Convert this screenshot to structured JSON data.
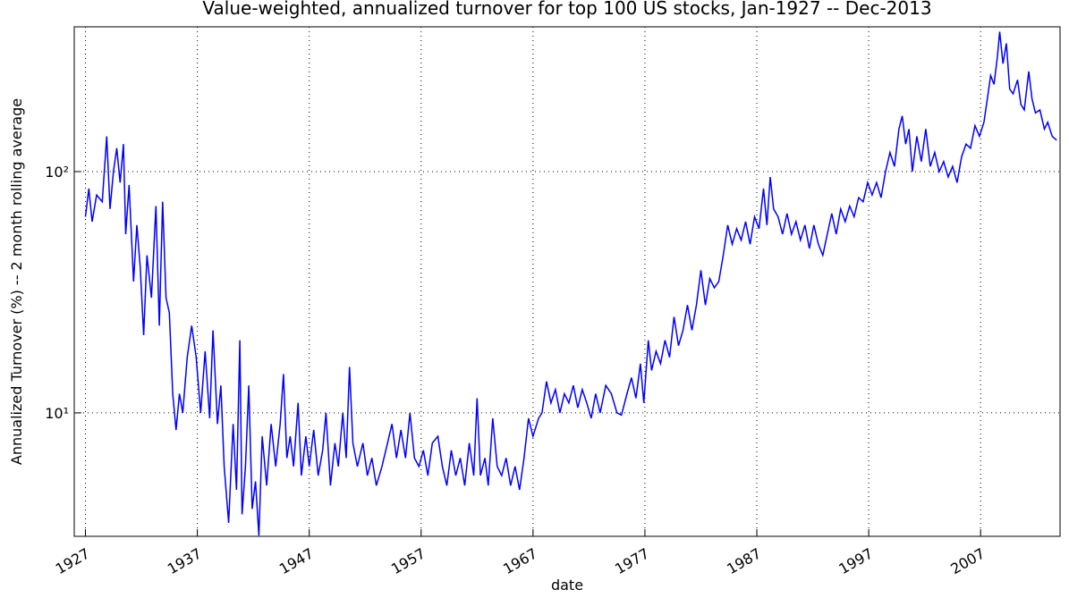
{
  "chart_data": {
    "type": "line",
    "title": "Value-weighted, annualized turnover for top 100 US stocks, Jan-1927 -- Dec-2013",
    "xlabel": "date",
    "ylabel": "Annualized Turnover (%) -- 2 month rolling average",
    "color": "#0000ff",
    "yscale": "log",
    "grid": true,
    "xlim": [
      1926,
      2014.1
    ],
    "ylim": [
      3.08,
      398
    ],
    "xticks": [
      1927,
      1937,
      1947,
      1957,
      1967,
      1977,
      1987,
      1997,
      2007
    ],
    "yticks": [
      {
        "value": 10,
        "label": "10¹"
      },
      {
        "value": 100,
        "label": "10²"
      }
    ],
    "x": [
      1927.0,
      1927.3,
      1927.6,
      1928.0,
      1928.5,
      1928.9,
      1929.2,
      1929.5,
      1929.8,
      1930.1,
      1930.4,
      1930.6,
      1930.9,
      1931.3,
      1931.6,
      1931.9,
      1932.2,
      1932.5,
      1932.9,
      1933.3,
      1933.6,
      1933.9,
      1934.2,
      1934.5,
      1934.8,
      1935.1,
      1935.4,
      1935.7,
      1936.1,
      1936.5,
      1936.9,
      1937.3,
      1937.7,
      1938.1,
      1938.4,
      1938.8,
      1939.1,
      1939.4,
      1939.8,
      1940.2,
      1940.5,
      1940.8,
      1941.0,
      1941.3,
      1941.6,
      1941.9,
      1942.2,
      1942.5,
      1942.8,
      1943.2,
      1943.6,
      1944.0,
      1944.4,
      1944.7,
      1945.0,
      1945.3,
      1945.6,
      1946.0,
      1946.3,
      1946.7,
      1947.0,
      1947.4,
      1947.8,
      1948.2,
      1948.5,
      1948.9,
      1949.3,
      1949.6,
      1950.0,
      1950.3,
      1950.6,
      1950.9,
      1951.3,
      1951.8,
      1952.2,
      1952.6,
      1953.0,
      1953.5,
      1954.0,
      1954.4,
      1954.8,
      1955.2,
      1955.6,
      1956.0,
      1956.4,
      1956.8,
      1957.2,
      1957.6,
      1958.0,
      1958.5,
      1958.9,
      1959.3,
      1959.7,
      1960.1,
      1960.5,
      1960.9,
      1961.3,
      1961.7,
      1962.0,
      1962.3,
      1962.7,
      1963.0,
      1963.4,
      1963.8,
      1964.2,
      1964.6,
      1965.0,
      1965.4,
      1965.8,
      1966.2,
      1966.6,
      1967.0,
      1967.5,
      1967.8,
      1968.2,
      1968.6,
      1969.0,
      1969.4,
      1969.8,
      1970.2,
      1970.6,
      1971.0,
      1971.4,
      1971.8,
      1972.2,
      1972.6,
      1973.0,
      1973.5,
      1974.0,
      1974.5,
      1974.9,
      1975.4,
      1975.8,
      1976.2,
      1976.6,
      1976.9,
      1977.3,
      1977.6,
      1978.0,
      1978.4,
      1978.8,
      1979.2,
      1979.6,
      1980.0,
      1980.4,
      1980.8,
      1981.2,
      1981.6,
      1982.0,
      1982.4,
      1982.8,
      1983.2,
      1983.6,
      1984.0,
      1984.4,
      1984.8,
      1985.2,
      1985.6,
      1986.0,
      1986.4,
      1986.8,
      1987.2,
      1987.6,
      1987.9,
      1988.2,
      1988.5,
      1988.9,
      1989.3,
      1989.7,
      1990.1,
      1990.5,
      1990.9,
      1991.3,
      1991.7,
      1992.1,
      1992.5,
      1992.9,
      1993.3,
      1993.7,
      1994.1,
      1994.5,
      1994.9,
      1995.3,
      1995.7,
      1996.1,
      1996.5,
      1996.9,
      1997.3,
      1997.7,
      1998.1,
      1998.5,
      1998.9,
      1999.3,
      1999.7,
      2000.0,
      2000.3,
      2000.6,
      2000.9,
      2001.3,
      2001.7,
      2002.1,
      2002.5,
      2002.9,
      2003.3,
      2003.7,
      2004.1,
      2004.5,
      2004.9,
      2005.3,
      2005.7,
      2006.1,
      2006.5,
      2006.9,
      2007.3,
      2007.6,
      2007.9,
      2008.2,
      2008.5,
      2008.7,
      2009.0,
      2009.3,
      2009.6,
      2009.9,
      2010.3,
      2010.6,
      2010.9,
      2011.3,
      2011.6,
      2011.9,
      2012.3,
      2012.7,
      2013.0,
      2013.4,
      2013.8
    ],
    "values": [
      65,
      85,
      62,
      80,
      75,
      140,
      70,
      100,
      125,
      90,
      130,
      55,
      88,
      35,
      60,
      40,
      21,
      45,
      30,
      72,
      23,
      75,
      30,
      26,
      12,
      8.5,
      12,
      10,
      17,
      23,
      17,
      10,
      18,
      9.5,
      22,
      9,
      13,
      6,
      3.5,
      9,
      4.8,
      20,
      3.8,
      6,
      13,
      4,
      5.2,
      3.1,
      8,
      5,
      9,
      6,
      9,
      14.5,
      6.5,
      8,
      6,
      11,
      5.5,
      8,
      6,
      8.5,
      5.5,
      7,
      10,
      5,
      7.5,
      6,
      10,
      6.5,
      15.5,
      7.5,
      6,
      7.5,
      5.5,
      6.5,
      5,
      6,
      7.5,
      9,
      6.5,
      8.5,
      6.5,
      10,
      6.5,
      6,
      7,
      5.5,
      7.5,
      8,
      6,
      5,
      7,
      5.5,
      6.5,
      5,
      7.5,
      5.5,
      11.5,
      5.5,
      6.5,
      5,
      9.5,
      6,
      5.5,
      6.5,
      5,
      6,
      4.8,
      6.5,
      9.5,
      8,
      9.5,
      10,
      13.5,
      11,
      12.5,
      10,
      12,
      11,
      13,
      10.5,
      12.5,
      11,
      9.5,
      12,
      10,
      13,
      12,
      10,
      9.8,
      12,
      14,
      11.5,
      16,
      11,
      20,
      15,
      18,
      16,
      20,
      17,
      25,
      19,
      22,
      28,
      22,
      28,
      39,
      28,
      36,
      33,
      35,
      45,
      60,
      50,
      58,
      52,
      62,
      50,
      65,
      58,
      85,
      60,
      95,
      70,
      65,
      55,
      67,
      55,
      62,
      52,
      60,
      48,
      60,
      50,
      45,
      55,
      67,
      55,
      70,
      62,
      72,
      65,
      78,
      75,
      90,
      80,
      90,
      78,
      100,
      120,
      105,
      150,
      170,
      130,
      150,
      100,
      140,
      110,
      150,
      105,
      120,
      100,
      110,
      95,
      105,
      90,
      115,
      130,
      125,
      155,
      140,
      160,
      200,
      250,
      230,
      300,
      380,
      280,
      340,
      220,
      210,
      240,
      190,
      180,
      260,
      200,
      175,
      180,
      150,
      160,
      140,
      135
    ]
  }
}
